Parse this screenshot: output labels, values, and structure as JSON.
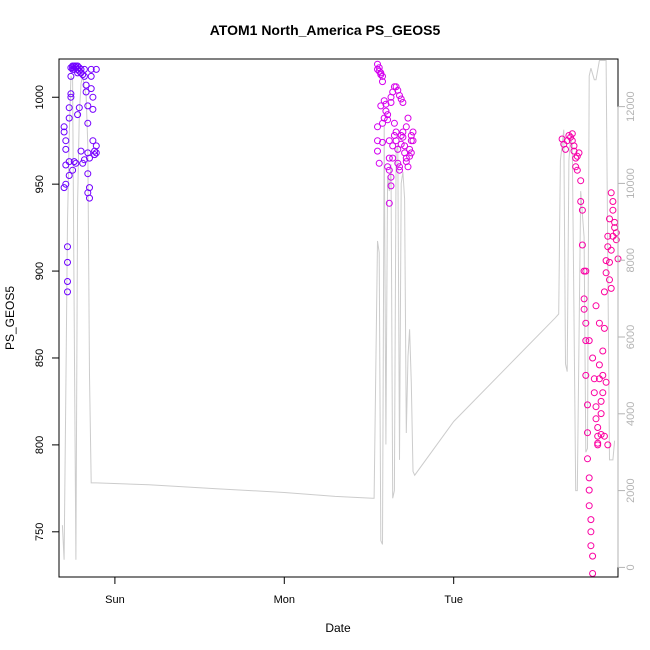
{
  "chart_data": {
    "type": "scatter",
    "title": "ATOM1 North_America PS_GEOS5",
    "xlabel": "Date",
    "ylabel": "PS_GEOS5",
    "x_ticks": [
      {
        "label": "Sun",
        "value": 1.0
      },
      {
        "label": "Mon",
        "value": 2.0
      },
      {
        "label": "Tue",
        "value": 3.0
      }
    ],
    "xlim": [
      0.67,
      3.97
    ],
    "ylim": [
      724,
      1022
    ],
    "y_ticks": [
      750,
      800,
      850,
      900,
      950,
      1000
    ],
    "y2_ticks": [
      0,
      2000,
      4000,
      6000,
      8000,
      10000,
      12000
    ],
    "y2lim": [
      -250,
      13240
    ],
    "point_color_start": "#6a00ff",
    "point_color_mid": "#cc00ff",
    "point_color_end": "#ff0099",
    "secondary_line_color": "#cccccc",
    "series": [
      {
        "style": "points",
        "points": [
          [
            0.7,
            948
          ],
          [
            0.7,
            980
          ],
          [
            0.7,
            983
          ],
          [
            0.71,
            975
          ],
          [
            0.71,
            970
          ],
          [
            0.71,
            961
          ],
          [
            0.71,
            950
          ],
          [
            0.72,
            888
          ],
          [
            0.72,
            894
          ],
          [
            0.72,
            905
          ],
          [
            0.72,
            914
          ],
          [
            0.73,
            955
          ],
          [
            0.73,
            963
          ],
          [
            0.73,
            988
          ],
          [
            0.73,
            994
          ],
          [
            0.74,
            1000
          ],
          [
            0.74,
            1002
          ],
          [
            0.74,
            1012
          ],
          [
            0.74,
            1017
          ],
          [
            0.75,
            1016
          ],
          [
            0.75,
            1018
          ],
          [
            0.75,
            1017
          ],
          [
            0.76,
            1016
          ],
          [
            0.76,
            1018
          ],
          [
            0.77,
            1018
          ],
          [
            0.77,
            1017
          ],
          [
            0.78,
            1016
          ],
          [
            0.78,
            1018
          ],
          [
            0.78,
            1014
          ],
          [
            0.79,
            1017
          ],
          [
            0.79,
            1015
          ],
          [
            0.8,
            1016
          ],
          [
            0.8,
            1014
          ],
          [
            0.81,
            1013
          ],
          [
            0.82,
            1012
          ],
          [
            0.82,
            1016
          ],
          [
            0.83,
            1007
          ],
          [
            0.83,
            1003
          ],
          [
            0.84,
            995
          ],
          [
            0.84,
            985
          ],
          [
            0.84,
            968
          ],
          [
            0.84,
            956
          ],
          [
            0.84,
            945
          ],
          [
            0.85,
            942
          ],
          [
            0.85,
            948
          ],
          [
            0.85,
            965
          ],
          [
            0.86,
            1012
          ],
          [
            0.86,
            1016
          ],
          [
            0.86,
            1005
          ],
          [
            0.87,
            1000
          ],
          [
            0.87,
            993
          ],
          [
            0.87,
            975
          ],
          [
            0.88,
            969
          ],
          [
            0.88,
            967
          ],
          [
            0.89,
            968
          ],
          [
            0.89,
            972
          ],
          [
            0.89,
            1016
          ],
          [
            0.75,
            958
          ],
          [
            0.76,
            963
          ],
          [
            0.77,
            962
          ],
          [
            0.78,
            990
          ],
          [
            0.79,
            994
          ],
          [
            0.8,
            969
          ],
          [
            0.81,
            962
          ],
          [
            0.82,
            964
          ],
          [
            2.55,
            1016
          ],
          [
            2.55,
            1019
          ],
          [
            2.56,
            1017
          ],
          [
            2.56,
            1015
          ],
          [
            2.57,
            1014
          ],
          [
            2.57,
            1013
          ],
          [
            2.58,
            1012
          ],
          [
            2.58,
            1009
          ],
          [
            2.55,
            983
          ],
          [
            2.55,
            975
          ],
          [
            2.55,
            969
          ],
          [
            2.56,
            962
          ],
          [
            2.57,
            995
          ],
          [
            2.58,
            985
          ],
          [
            2.58,
            974
          ],
          [
            2.59,
            988
          ],
          [
            2.59,
            998
          ],
          [
            2.6,
            996
          ],
          [
            2.6,
            992
          ],
          [
            2.61,
            990
          ],
          [
            2.61,
            987
          ],
          [
            2.62,
            975
          ],
          [
            2.62,
            965
          ],
          [
            2.62,
            958
          ],
          [
            2.63,
            954
          ],
          [
            2.63,
            949
          ],
          [
            2.64,
            965
          ],
          [
            2.64,
            972
          ],
          [
            2.65,
            978
          ],
          [
            2.65,
            985
          ],
          [
            2.66,
            980
          ],
          [
            2.66,
            975
          ],
          [
            2.67,
            970
          ],
          [
            2.67,
            962
          ],
          [
            2.68,
            958
          ],
          [
            2.68,
            960
          ],
          [
            2.69,
            973
          ],
          [
            2.69,
            978
          ],
          [
            2.7,
            980
          ],
          [
            2.7,
            977
          ],
          [
            2.71,
            972
          ],
          [
            2.71,
            968
          ],
          [
            2.72,
            965
          ],
          [
            2.72,
            963
          ],
          [
            2.73,
            960
          ],
          [
            2.74,
            966
          ],
          [
            2.74,
            970
          ],
          [
            2.75,
            975
          ],
          [
            2.75,
            978
          ],
          [
            2.76,
            980
          ],
          [
            2.76,
            975
          ],
          [
            2.63,
            1000
          ],
          [
            2.64,
            1003
          ],
          [
            2.65,
            1006
          ],
          [
            2.66,
            1006
          ],
          [
            2.67,
            1004
          ],
          [
            2.68,
            1001
          ],
          [
            2.69,
            999
          ],
          [
            2.7,
            997
          ],
          [
            2.62,
            939
          ],
          [
            2.61,
            960
          ],
          [
            2.63,
            997
          ],
          [
            2.72,
            983
          ],
          [
            2.73,
            988
          ],
          [
            2.75,
            968
          ],
          [
            3.64,
            976
          ],
          [
            3.65,
            973
          ],
          [
            3.66,
            970
          ],
          [
            3.67,
            975
          ],
          [
            3.68,
            978
          ],
          [
            3.69,
            977
          ],
          [
            3.7,
            979
          ],
          [
            3.7,
            975
          ],
          [
            3.71,
            972
          ],
          [
            3.71,
            969
          ],
          [
            3.72,
            965
          ],
          [
            3.72,
            960
          ],
          [
            3.73,
            958
          ],
          [
            3.73,
            966
          ],
          [
            3.74,
            968
          ],
          [
            3.75,
            952
          ],
          [
            3.75,
            940
          ],
          [
            3.76,
            935
          ],
          [
            3.76,
            915
          ],
          [
            3.77,
            900
          ],
          [
            3.77,
            884
          ],
          [
            3.77,
            878
          ],
          [
            3.78,
            870
          ],
          [
            3.78,
            860
          ],
          [
            3.78,
            840
          ],
          [
            3.79,
            823
          ],
          [
            3.79,
            807
          ],
          [
            3.79,
            792
          ],
          [
            3.8,
            781
          ],
          [
            3.8,
            774
          ],
          [
            3.8,
            765
          ],
          [
            3.81,
            757
          ],
          [
            3.81,
            750
          ],
          [
            3.81,
            742
          ],
          [
            3.82,
            736
          ],
          [
            3.82,
            726
          ],
          [
            3.83,
            838
          ],
          [
            3.83,
            830
          ],
          [
            3.84,
            822
          ],
          [
            3.84,
            815
          ],
          [
            3.85,
            810
          ],
          [
            3.85,
            805
          ],
          [
            3.85,
            800
          ],
          [
            3.86,
            846
          ],
          [
            3.86,
            838
          ],
          [
            3.87,
            825
          ],
          [
            3.87,
            818
          ],
          [
            3.88,
            830
          ],
          [
            3.88,
            854
          ],
          [
            3.89,
            867
          ],
          [
            3.89,
            888
          ],
          [
            3.9,
            899
          ],
          [
            3.9,
            906
          ],
          [
            3.91,
            914
          ],
          [
            3.91,
            920
          ],
          [
            3.92,
            930
          ],
          [
            3.93,
            945
          ],
          [
            3.94,
            940
          ],
          [
            3.94,
            935
          ],
          [
            3.95,
            925
          ],
          [
            3.95,
            928
          ],
          [
            3.96,
            922
          ],
          [
            3.96,
            918
          ],
          [
            3.97,
            907
          ],
          [
            3.92,
            905
          ],
          [
            3.93,
            912
          ],
          [
            3.94,
            920
          ],
          [
            3.78,
            900
          ],
          [
            3.8,
            860
          ],
          [
            3.82,
            850
          ],
          [
            3.84,
            880
          ],
          [
            3.86,
            870
          ],
          [
            3.88,
            840
          ],
          [
            3.9,
            836
          ],
          [
            3.91,
            800
          ],
          [
            3.92,
            895
          ],
          [
            3.93,
            890
          ],
          [
            3.89,
            805
          ],
          [
            3.87,
            806
          ],
          [
            3.85,
            801
          ]
        ]
      },
      {
        "name": "",
        "style": "line",
        "axis": "right",
        "points": [
          [
            0.69,
            1100
          ],
          [
            0.7,
            200
          ],
          [
            0.71,
            4500
          ],
          [
            0.72,
            9000
          ],
          [
            0.73,
            11200
          ],
          [
            0.74,
            12800
          ],
          [
            0.75,
            12700
          ],
          [
            0.76,
            6500
          ],
          [
            0.77,
            200
          ],
          [
            0.78,
            9500
          ],
          [
            0.79,
            11800
          ],
          [
            0.8,
            12600
          ],
          [
            0.81,
            12800
          ],
          [
            0.82,
            12500
          ],
          [
            0.83,
            12300
          ],
          [
            0.84,
            11000
          ],
          [
            0.85,
            5000
          ],
          [
            0.86,
            2200
          ],
          [
            0.88,
            2200
          ],
          [
            0.89,
            2200
          ],
          [
            1.2,
            2150
          ],
          [
            1.6,
            2050
          ],
          [
            2.0,
            1950
          ],
          [
            2.3,
            1850
          ],
          [
            2.52,
            1800
          ],
          [
            2.53,
            1800
          ],
          [
            2.55,
            8500
          ],
          [
            2.56,
            8200
          ],
          [
            2.57,
            700
          ],
          [
            2.58,
            600
          ],
          [
            2.59,
            11500
          ],
          [
            2.6,
            3200
          ],
          [
            2.61,
            10200
          ],
          [
            2.62,
            9800
          ],
          [
            2.63,
            10500
          ],
          [
            2.64,
            1800
          ],
          [
            2.65,
            2000
          ],
          [
            2.66,
            10800
          ],
          [
            2.67,
            11000
          ],
          [
            2.68,
            2800
          ],
          [
            2.69,
            10000
          ],
          [
            2.7,
            10300
          ],
          [
            2.71,
            9600
          ],
          [
            2.72,
            3500
          ],
          [
            2.73,
            5500
          ],
          [
            2.74,
            6200
          ],
          [
            2.75,
            4800
          ],
          [
            2.76,
            2500
          ],
          [
            2.77,
            2400
          ],
          [
            3.0,
            3800
          ],
          [
            3.4,
            5600
          ],
          [
            3.6,
            6500
          ],
          [
            3.62,
            6600
          ],
          [
            3.63,
            10600
          ],
          [
            3.65,
            11400
          ],
          [
            3.66,
            5300
          ],
          [
            3.67,
            5100
          ],
          [
            3.68,
            10600
          ],
          [
            3.69,
            11200
          ],
          [
            3.7,
            11000
          ],
          [
            3.72,
            2000
          ],
          [
            3.73,
            2000
          ],
          [
            3.75,
            9800
          ],
          [
            3.77,
            8600
          ],
          [
            3.78,
            3000
          ],
          [
            3.79,
            3100
          ],
          [
            3.8,
            12800
          ],
          [
            3.81,
            13000
          ],
          [
            3.83,
            12700
          ],
          [
            3.84,
            12700
          ],
          [
            3.86,
            13200
          ],
          [
            3.88,
            13200
          ],
          [
            3.9,
            13200
          ],
          [
            3.92,
            2800
          ],
          [
            3.94,
            2800
          ],
          [
            3.95,
            3300
          ]
        ]
      }
    ]
  }
}
